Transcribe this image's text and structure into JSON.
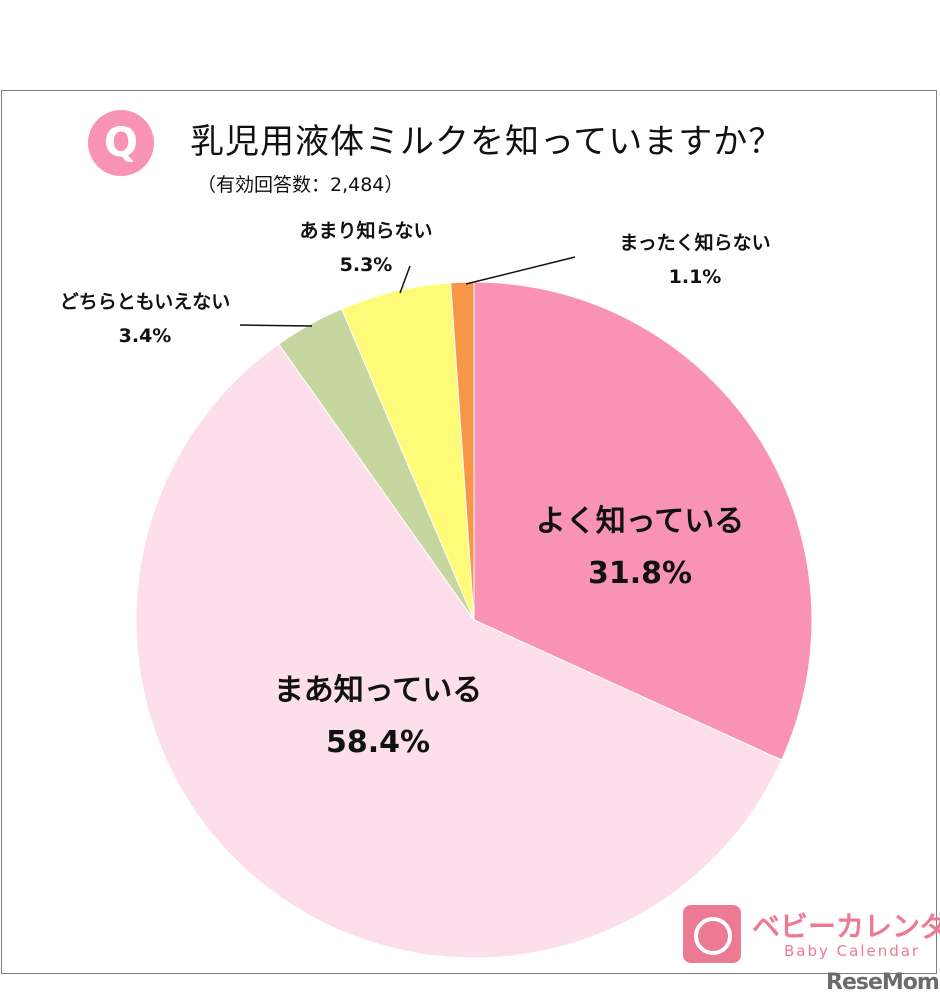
{
  "header": {
    "q_badge": "Q",
    "title": "乳児用液体ミルクを知っていますか？",
    "subtitle": "（有効回答数：2,484）"
  },
  "chart_data": {
    "type": "pie",
    "title": "乳児用液体ミルクを知っていますか？",
    "start": "12 o'clock, clockwise",
    "slices": [
      {
        "label": "よく知っている",
        "value": 31.8,
        "display": "31.8%",
        "color": "#F993B5"
      },
      {
        "label": "まあ知っている",
        "value": 58.4,
        "display": "58.4%",
        "color": "#FCDFEA"
      },
      {
        "label": "どちらともいえない",
        "value": 3.4,
        "display": "3.4%",
        "color": "#C5D69F"
      },
      {
        "label": "あまり知らない",
        "value": 5.3,
        "display": "5.3%",
        "color": "#FFFA78"
      },
      {
        "label": "まったく知らない",
        "value": 1.1,
        "display": "1.1%",
        "color": "#F79646"
      }
    ]
  },
  "branding": {
    "logo_jp": "ベビーカレンダー",
    "logo_en": "Baby Calendar",
    "watermark": "ReseMom"
  }
}
